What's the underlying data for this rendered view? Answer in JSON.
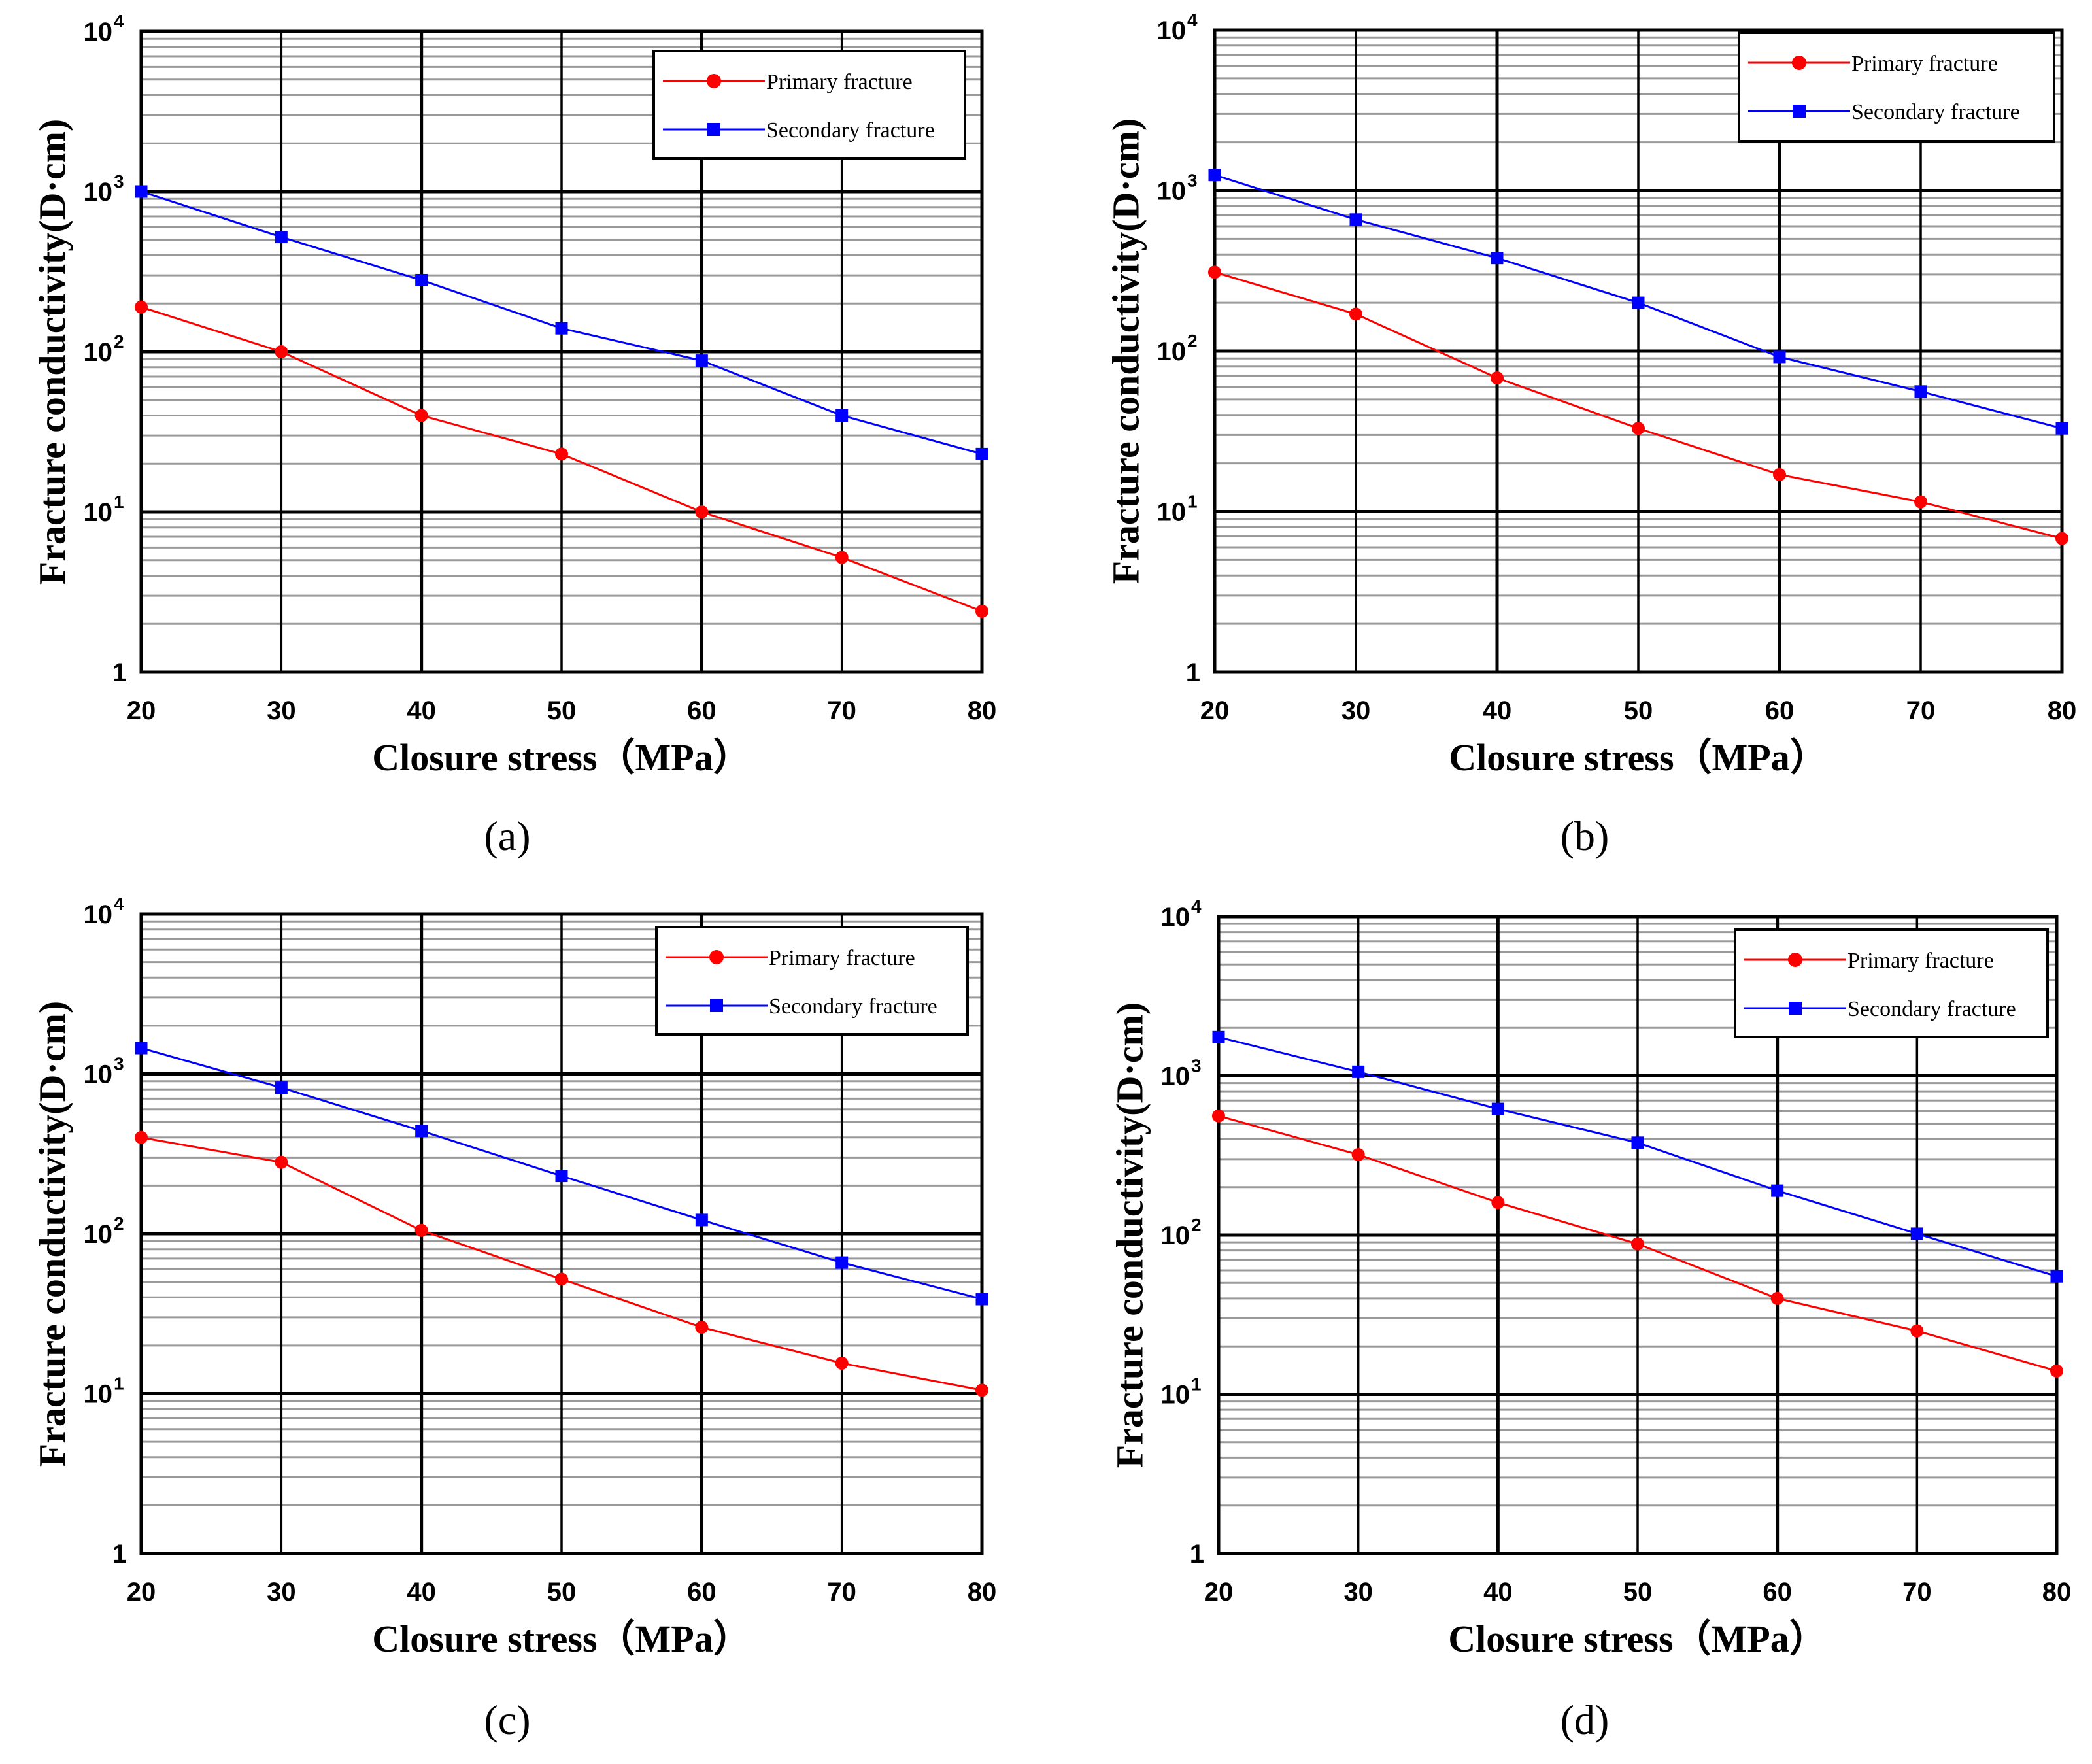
{
  "figure": {
    "chart_data": [
      {
        "panel": "(a)",
        "type": "line",
        "yscale": "log",
        "x": [
          20,
          30,
          40,
          50,
          60,
          70,
          80
        ],
        "xlim": [
          20,
          80
        ],
        "ylim": [
          1,
          10000
        ],
        "xlabel": "Closure stress（MPa）",
        "ylabel": "Fracture conductivity(D·cm)",
        "legend_position": "top-right",
        "series": [
          {
            "name": "Primary fracture",
            "color": "#ff0000",
            "marker": "circle",
            "values": [
              190,
              100,
              40,
              23,
              10,
              5.2,
              2.4
            ]
          },
          {
            "name": "Secondary fracture",
            "color": "#0000ff",
            "marker": "square",
            "values": [
              1000,
              520,
              280,
              140,
              88,
              40,
              23
            ]
          }
        ]
      },
      {
        "panel": "(b)",
        "type": "line",
        "yscale": "log",
        "x": [
          20,
          30,
          40,
          50,
          60,
          70,
          80
        ],
        "xlim": [
          20,
          80
        ],
        "ylim": [
          1,
          10000
        ],
        "xlabel": "Closure stress（MPa）",
        "ylabel": "Fracture conductivity(D·cm)",
        "legend_position": "top-right",
        "series": [
          {
            "name": "Primary fracture",
            "color": "#ff0000",
            "marker": "circle",
            "values": [
              310,
              170,
              68,
              33,
              17,
              11.5,
              6.8
            ]
          },
          {
            "name": "Secondary fracture",
            "color": "#0000ff",
            "marker": "square",
            "values": [
              1250,
              660,
              380,
              200,
              92,
              56,
              33
            ]
          }
        ]
      },
      {
        "panel": "(c)",
        "type": "line",
        "yscale": "log",
        "x": [
          20,
          30,
          40,
          50,
          60,
          70,
          80
        ],
        "xlim": [
          20,
          80
        ],
        "ylim": [
          1,
          10000
        ],
        "xlabel": "Closure stress（MPa）",
        "ylabel": "Fracture conductivity(D·cm)",
        "legend_position": "top-right",
        "series": [
          {
            "name": "Primary fracture",
            "color": "#ff0000",
            "marker": "circle",
            "values": [
              400,
              280,
              105,
              52,
              26,
              15.5,
              10.5
            ]
          },
          {
            "name": "Secondary fracture",
            "color": "#0000ff",
            "marker": "square",
            "values": [
              1450,
              820,
              440,
              230,
              122,
              66,
              39
            ]
          }
        ]
      },
      {
        "panel": "(d)",
        "type": "line",
        "yscale": "log",
        "x": [
          20,
          30,
          40,
          50,
          60,
          70,
          80
        ],
        "xlim": [
          20,
          80
        ],
        "ylim": [
          1,
          10000
        ],
        "xlabel": "Closure stress（MPa）",
        "ylabel": "Fracture conductivity(D·cm)",
        "legend_position": "top-right",
        "series": [
          {
            "name": "Primary fracture",
            "color": "#ff0000",
            "marker": "circle",
            "values": [
              560,
              320,
              160,
              88,
              40,
              25,
              14
            ]
          },
          {
            "name": "Secondary fracture",
            "color": "#0000ff",
            "marker": "square",
            "values": [
              1750,
              1060,
              620,
              380,
              190,
              102,
              55
            ]
          }
        ]
      }
    ],
    "y_tick_labels": [
      {
        "base": "1",
        "exp": ""
      },
      {
        "base": "10",
        "exp": "1"
      },
      {
        "base": "10",
        "exp": "2"
      },
      {
        "base": "10",
        "exp": "3"
      },
      {
        "base": "10",
        "exp": "4"
      }
    ]
  }
}
